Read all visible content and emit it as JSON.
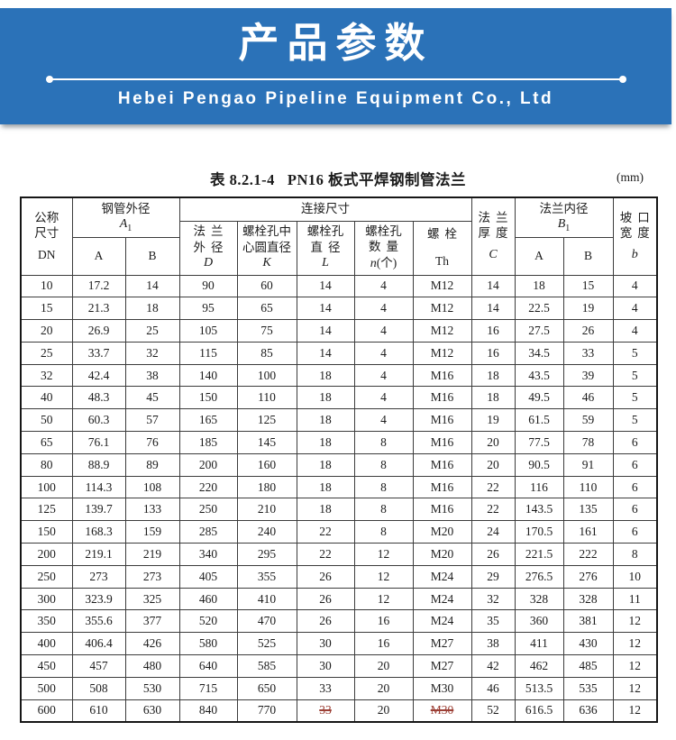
{
  "banner": {
    "title": "产品参数",
    "company": "Hebei Pengao Pipeline Equipment Co., Ltd",
    "bg_color": "#2b72b8",
    "text_color": "#ffffff"
  },
  "table": {
    "caption": {
      "prefix": "表 8.2.1-4",
      "name": "PN16 板式平焊钢制管法兰",
      "unit": "(mm)"
    },
    "strike_color": "#9c4036",
    "header": {
      "nominal": {
        "l1": "公称",
        "l2": "尺寸",
        "sym": "DN"
      },
      "pipe_od": {
        "label": "钢管外径",
        "sym": "A",
        "sub": "1"
      },
      "connect": {
        "label": "连接尺寸"
      },
      "flange_od": {
        "l1": "法兰",
        "l2": "外径",
        "sym": "D"
      },
      "bolt_circle": {
        "l1": "螺栓孔中",
        "l2": "心圆直径",
        "sym": "K"
      },
      "bolt_hole": {
        "l1": "螺栓孔",
        "l2": "直径",
        "sym": "L"
      },
      "bolt_count": {
        "l1": "螺栓孔",
        "l2": "数量",
        "sym_i": "n",
        "sym_rest": "(个)"
      },
      "bolt": {
        "l1": "螺栓",
        "sym": "Th"
      },
      "thickness": {
        "l1": "法兰",
        "l2": "厚度",
        "sym": "C"
      },
      "flange_id": {
        "label": "法兰内径",
        "sym": "B",
        "sub": "1"
      },
      "groove": {
        "l1": "坡口",
        "l2": "宽度",
        "sym": "b"
      },
      "sub_a": "A",
      "sub_b": "B"
    },
    "rows": [
      {
        "cells": [
          "10",
          "17.2",
          "14",
          "90",
          "60",
          "14",
          "4",
          "M12",
          "14",
          "18",
          "15",
          "4"
        ],
        "struck": []
      },
      {
        "cells": [
          "15",
          "21.3",
          "18",
          "95",
          "65",
          "14",
          "4",
          "M12",
          "14",
          "22.5",
          "19",
          "4"
        ],
        "struck": []
      },
      {
        "cells": [
          "20",
          "26.9",
          "25",
          "105",
          "75",
          "14",
          "4",
          "M12",
          "16",
          "27.5",
          "26",
          "4"
        ],
        "struck": []
      },
      {
        "cells": [
          "25",
          "33.7",
          "32",
          "115",
          "85",
          "14",
          "4",
          "M12",
          "16",
          "34.5",
          "33",
          "5"
        ],
        "struck": []
      },
      {
        "cells": [
          "32",
          "42.4",
          "38",
          "140",
          "100",
          "18",
          "4",
          "M16",
          "18",
          "43.5",
          "39",
          "5"
        ],
        "struck": []
      },
      {
        "cells": [
          "40",
          "48.3",
          "45",
          "150",
          "110",
          "18",
          "4",
          "M16",
          "18",
          "49.5",
          "46",
          "5"
        ],
        "struck": []
      },
      {
        "cells": [
          "50",
          "60.3",
          "57",
          "165",
          "125",
          "18",
          "4",
          "M16",
          "19",
          "61.5",
          "59",
          "5"
        ],
        "struck": []
      },
      {
        "cells": [
          "65",
          "76.1",
          "76",
          "185",
          "145",
          "18",
          "8",
          "M16",
          "20",
          "77.5",
          "78",
          "6"
        ],
        "struck": []
      },
      {
        "cells": [
          "80",
          "88.9",
          "89",
          "200",
          "160",
          "18",
          "8",
          "M16",
          "20",
          "90.5",
          "91",
          "6"
        ],
        "struck": []
      },
      {
        "cells": [
          "100",
          "114.3",
          "108",
          "220",
          "180",
          "18",
          "8",
          "M16",
          "22",
          "116",
          "110",
          "6"
        ],
        "struck": []
      },
      {
        "cells": [
          "125",
          "139.7",
          "133",
          "250",
          "210",
          "18",
          "8",
          "M16",
          "22",
          "143.5",
          "135",
          "6"
        ],
        "struck": []
      },
      {
        "cells": [
          "150",
          "168.3",
          "159",
          "285",
          "240",
          "22",
          "8",
          "M20",
          "24",
          "170.5",
          "161",
          "6"
        ],
        "struck": []
      },
      {
        "cells": [
          "200",
          "219.1",
          "219",
          "340",
          "295",
          "22",
          "12",
          "M20",
          "26",
          "221.5",
          "222",
          "8"
        ],
        "struck": []
      },
      {
        "cells": [
          "250",
          "273",
          "273",
          "405",
          "355",
          "26",
          "12",
          "M24",
          "29",
          "276.5",
          "276",
          "10"
        ],
        "struck": []
      },
      {
        "cells": [
          "300",
          "323.9",
          "325",
          "460",
          "410",
          "26",
          "12",
          "M24",
          "32",
          "328",
          "328",
          "11"
        ],
        "struck": []
      },
      {
        "cells": [
          "350",
          "355.6",
          "377",
          "520",
          "470",
          "26",
          "16",
          "M24",
          "35",
          "360",
          "381",
          "12"
        ],
        "struck": []
      },
      {
        "cells": [
          "400",
          "406.4",
          "426",
          "580",
          "525",
          "30",
          "16",
          "M27",
          "38",
          "411",
          "430",
          "12"
        ],
        "struck": []
      },
      {
        "cells": [
          "450",
          "457",
          "480",
          "640",
          "585",
          "30",
          "20",
          "M27",
          "42",
          "462",
          "485",
          "12"
        ],
        "struck": []
      },
      {
        "cells": [
          "500",
          "508",
          "530",
          "715",
          "650",
          "33",
          "20",
          "M30",
          "46",
          "513.5",
          "535",
          "12"
        ],
        "struck": []
      },
      {
        "cells": [
          "600",
          "610",
          "630",
          "840",
          "770",
          "33",
          "20",
          "M30",
          "52",
          "616.5",
          "636",
          "12"
        ],
        "struck": [
          5,
          7
        ]
      }
    ]
  }
}
